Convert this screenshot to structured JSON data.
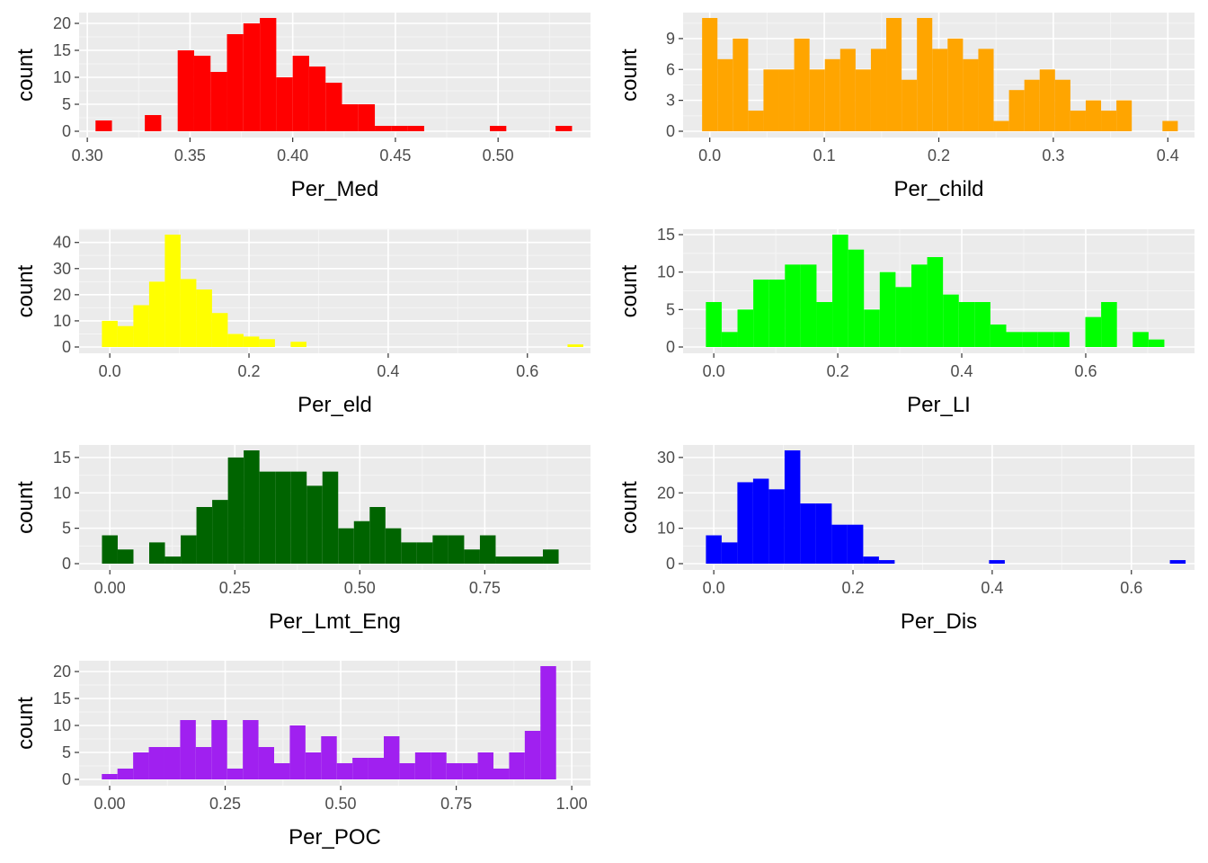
{
  "chart_data": [
    {
      "type": "bar",
      "xlabel": "Per_Med",
      "ylabel": "count",
      "color": "#ff0000",
      "bar_width": 0.008,
      "xlim": [
        0.296,
        0.545
      ],
      "ylim": [
        0,
        21
      ],
      "xticks": [
        0.3,
        0.35,
        0.4,
        0.45,
        0.5
      ],
      "xtick_labels": [
        "0.30",
        "0.35",
        "0.40",
        "0.45",
        "0.50"
      ],
      "yticks": [
        0,
        5,
        10,
        15,
        20
      ],
      "ytick_labels": [
        "0",
        "5",
        "10",
        "15",
        "20"
      ],
      "x": [
        0.308,
        0.332,
        0.348,
        0.356,
        0.364,
        0.372,
        0.38,
        0.388,
        0.396,
        0.404,
        0.412,
        0.42,
        0.428,
        0.436,
        0.444,
        0.452,
        0.46,
        0.5,
        0.532
      ],
      "values": [
        2,
        3,
        15,
        14,
        11,
        18,
        20,
        21,
        10,
        14,
        12,
        9,
        5,
        5,
        1,
        1,
        1,
        1,
        1
      ]
    },
    {
      "type": "bar",
      "xlabel": "Per_child",
      "ylabel": "count",
      "color": "#ffa500",
      "bar_width": 0.0134,
      "xlim": [
        -0.0233,
        0.4233
      ],
      "ylim": [
        0,
        11
      ],
      "xticks": [
        0.0,
        0.1,
        0.2,
        0.3,
        0.4
      ],
      "xtick_labels": [
        "0.0",
        "0.1",
        "0.2",
        "0.3",
        "0.4"
      ],
      "yticks": [
        0,
        3,
        6,
        9
      ],
      "ytick_labels": [
        "0",
        "3",
        "6",
        "9"
      ],
      "x": [
        0.0,
        0.0134,
        0.0268,
        0.0402,
        0.0536,
        0.067,
        0.0804,
        0.0938,
        0.1072,
        0.1206,
        0.134,
        0.1474,
        0.1608,
        0.1742,
        0.1876,
        0.201,
        0.2144,
        0.2278,
        0.2412,
        0.2546,
        0.268,
        0.2814,
        0.2948,
        0.3082,
        0.3216,
        0.335,
        0.3484,
        0.3618,
        0.3752,
        0.402
      ],
      "values": [
        11,
        7,
        9,
        2,
        6,
        6,
        9,
        6,
        7,
        8,
        6,
        8,
        11,
        5,
        11,
        8,
        9,
        7,
        8,
        1,
        4,
        5,
        6,
        5,
        2,
        3,
        2,
        3,
        0,
        1
      ]
    },
    {
      "type": "bar",
      "xlabel": "Per_eld",
      "ylabel": "count",
      "color": "#ffff00",
      "bar_width": 0.0226,
      "xlim": [
        -0.0441,
        0.6907
      ],
      "ylim": [
        0,
        43
      ],
      "xticks": [
        0.0,
        0.2,
        0.4,
        0.6
      ],
      "xtick_labels": [
        "0.0",
        "0.2",
        "0.4",
        "0.6"
      ],
      "yticks": [
        0,
        10,
        20,
        30,
        40
      ],
      "ytick_labels": [
        "0",
        "10",
        "20",
        "30",
        "40"
      ],
      "x": [
        0.0,
        0.0226,
        0.0452,
        0.0678,
        0.0904,
        0.113,
        0.1356,
        0.1582,
        0.1808,
        0.2034,
        0.226,
        0.2712,
        0.669
      ],
      "values": [
        10,
        8,
        16,
        25,
        43,
        26,
        22,
        13,
        5,
        4,
        3,
        2,
        1
      ]
    },
    {
      "type": "bar",
      "xlabel": "Per_LI",
      "ylabel": "count",
      "color": "#00ff00",
      "bar_width": 0.0255,
      "xlim": [
        -0.0495,
        0.7755
      ],
      "ylim": [
        0,
        15
      ],
      "xticks": [
        0.0,
        0.2,
        0.4,
        0.6
      ],
      "xtick_labels": [
        "0.0",
        "0.2",
        "0.4",
        "0.6"
      ],
      "yticks": [
        0,
        5,
        10,
        15
      ],
      "ytick_labels": [
        "0",
        "5",
        "10",
        "15"
      ],
      "x": [
        0.0,
        0.0255,
        0.051,
        0.0765,
        0.102,
        0.1275,
        0.153,
        0.1785,
        0.204,
        0.2295,
        0.255,
        0.2805,
        0.306,
        0.3315,
        0.357,
        0.3825,
        0.408,
        0.4335,
        0.459,
        0.4845,
        0.51,
        0.5355,
        0.561,
        0.6121,
        0.6376,
        0.6886,
        0.7141
      ],
      "values": [
        6,
        2,
        5,
        9,
        9,
        11,
        11,
        6,
        15,
        13,
        5,
        10,
        8,
        11,
        12,
        7,
        6,
        6,
        3,
        2,
        2,
        2,
        2,
        4,
        6,
        2,
        1
      ]
    },
    {
      "type": "bar",
      "xlabel": "Per_Lmt_Eng",
      "ylabel": "count",
      "color": "#006400",
      "bar_width": 0.0315,
      "xlim": [
        -0.0615,
        0.9615
      ],
      "ylim": [
        0,
        16
      ],
      "xticks": [
        0.0,
        0.25,
        0.5,
        0.75
      ],
      "xtick_labels": [
        "0.00",
        "0.25",
        "0.50",
        "0.75"
      ],
      "yticks": [
        0,
        5,
        10,
        15
      ],
      "ytick_labels": [
        "0",
        "5",
        "10",
        "15"
      ],
      "x": [
        0.0,
        0.0315,
        0.063,
        0.0945,
        0.126,
        0.1575,
        0.189,
        0.2205,
        0.252,
        0.2835,
        0.315,
        0.3465,
        0.378,
        0.4095,
        0.441,
        0.4725,
        0.504,
        0.5355,
        0.567,
        0.5985,
        0.63,
        0.6615,
        0.693,
        0.7245,
        0.756,
        0.7875,
        0.819,
        0.8505,
        0.882
      ],
      "values": [
        4,
        2,
        0,
        3,
        1,
        4,
        8,
        9,
        15,
        16,
        13,
        13,
        13,
        11,
        13,
        5,
        6,
        8,
        5,
        3,
        3,
        4,
        4,
        2,
        4,
        1,
        1,
        1,
        2
      ]
    },
    {
      "type": "bar",
      "xlabel": "Per_Dis",
      "ylabel": "count",
      "color": "#0000ff",
      "bar_width": 0.0226,
      "xlim": [
        -0.0441,
        0.6907
      ],
      "ylim": [
        0,
        32
      ],
      "xticks": [
        0.0,
        0.2,
        0.4,
        0.6
      ],
      "xtick_labels": [
        "0.0",
        "0.2",
        "0.4",
        "0.6"
      ],
      "yticks": [
        0,
        10,
        20,
        30
      ],
      "ytick_labels": [
        "0",
        "10",
        "20",
        "30"
      ],
      "x": [
        0.0,
        0.0226,
        0.0452,
        0.0678,
        0.0904,
        0.113,
        0.1356,
        0.1582,
        0.1808,
        0.2034,
        0.226,
        0.2486,
        0.4068,
        0.6666
      ],
      "values": [
        8,
        6,
        23,
        24,
        21,
        32,
        17,
        17,
        11,
        11,
        2,
        1,
        1,
        1
      ]
    },
    {
      "type": "bar",
      "xlabel": "Per_POC",
      "ylabel": "count",
      "color": "#a020f0",
      "bar_width": 0.0339,
      "xlim": [
        -0.0661,
        1.0406
      ],
      "ylim": [
        0,
        21
      ],
      "xticks": [
        0.0,
        0.25,
        0.5,
        0.75,
        1.0
      ],
      "xtick_labels": [
        "0.00",
        "0.25",
        "0.50",
        "0.75",
        "1.00"
      ],
      "yticks": [
        0,
        5,
        10,
        15,
        20
      ],
      "ytick_labels": [
        "0",
        "5",
        "10",
        "15",
        "20"
      ],
      "x": [
        0.0,
        0.0339,
        0.0678,
        0.1017,
        0.1356,
        0.1695,
        0.2034,
        0.2373,
        0.2712,
        0.3051,
        0.339,
        0.3729,
        0.4068,
        0.4407,
        0.4746,
        0.5085,
        0.5424,
        0.5763,
        0.6102,
        0.6441,
        0.678,
        0.7119,
        0.7458,
        0.7797,
        0.8136,
        0.8475,
        0.8814,
        0.9153,
        0.9492
      ],
      "values": [
        1,
        2,
        5,
        6,
        6,
        11,
        6,
        11,
        2,
        11,
        6,
        3,
        10,
        5,
        8,
        3,
        4,
        4,
        8,
        3,
        5,
        5,
        3,
        3,
        5,
        2,
        5,
        9,
        21
      ]
    }
  ]
}
